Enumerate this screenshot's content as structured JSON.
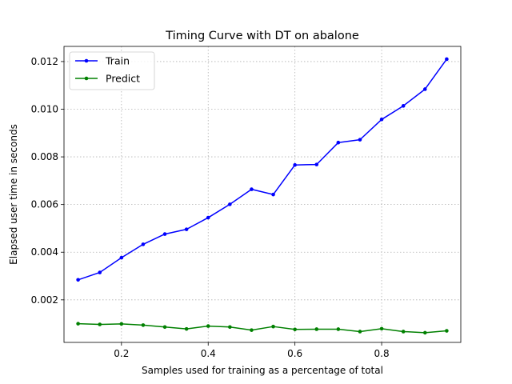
{
  "chart_data": {
    "type": "line",
    "title": "Timing Curve with DT on abalone",
    "xlabel": "Samples used for training as a percentage of total",
    "ylabel": "Elapsed user time in seconds",
    "xlim": [
      0.0675,
      0.9825
    ],
    "ylim": [
      0.000215,
      0.012635
    ],
    "xticks": [
      0.2,
      0.4,
      0.6,
      0.8
    ],
    "xtick_labels": [
      "0.2",
      "0.4",
      "0.6",
      "0.8"
    ],
    "yticks": [
      0.002,
      0.004,
      0.006,
      0.008,
      0.01,
      0.012
    ],
    "ytick_labels": [
      "0.002",
      "0.004",
      "0.006",
      "0.008",
      "0.010",
      "0.012"
    ],
    "grid": true,
    "legend_position": "top-left",
    "x": [
      0.1,
      0.15,
      0.2,
      0.25,
      0.3,
      0.35,
      0.4,
      0.45,
      0.5,
      0.55,
      0.6,
      0.65,
      0.7,
      0.75,
      0.8,
      0.85,
      0.9,
      0.95
    ],
    "series": [
      {
        "name": "Train",
        "color": "#0000ff",
        "values": [
          0.00284,
          0.00315,
          0.00377,
          0.00433,
          0.00476,
          0.00496,
          0.00545,
          0.00601,
          0.00664,
          0.00642,
          0.00766,
          0.00768,
          0.0086,
          0.00872,
          0.00957,
          0.01014,
          0.01084,
          0.0121
        ]
      },
      {
        "name": "Predict",
        "color": "#008000",
        "values": [
          0.001,
          0.00097,
          0.00099,
          0.00094,
          0.00086,
          0.00078,
          0.0009,
          0.00086,
          0.00073,
          0.00088,
          0.00076,
          0.00077,
          0.00077,
          0.00067,
          0.00079,
          0.00067,
          0.00062,
          0.0007
        ]
      }
    ]
  }
}
